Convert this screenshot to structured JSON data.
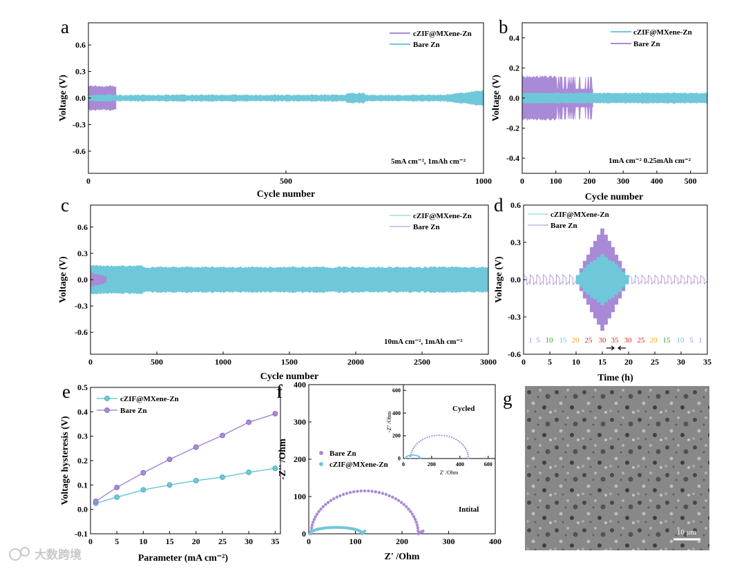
{
  "colors": {
    "purple": "#a98ad6",
    "cyan": "#6fc8d9",
    "red": "#d62728",
    "green": "#2ca02c",
    "orange": "#ff9f1c",
    "axis": "#000000"
  },
  "panel_labels": [
    "a",
    "b",
    "c",
    "d",
    "e",
    "f",
    "g"
  ],
  "watermark": "大数跨境",
  "scalebar_label": "10 μm",
  "sem_image": {
    "panel": "g",
    "description": "SEM micrograph"
  },
  "chart_data": [
    {
      "panel": "a",
      "type": "line",
      "xlabel": "Cycle number",
      "ylabel": "Voltage (V)",
      "xlim": [
        0,
        1000
      ],
      "ylim": [
        -0.85,
        0.85
      ],
      "xticks": [
        "0",
        "500",
        "1000"
      ],
      "yticks": [
        "-0.6",
        "-0.3",
        "0.0",
        "0.3",
        "0.6"
      ],
      "legend": "top-right",
      "annotation": "5mA cm⁻²,  1mAh cm⁻²",
      "series": [
        {
          "name": "cZIF@MXene-Zn",
          "color": "purple",
          "cycles": [
            0,
            70
          ],
          "amplitude": 0.14
        },
        {
          "name": "Bare Zn",
          "color": "cyan",
          "cycles": [
            0,
            1000
          ],
          "amplitude": [
            0.03,
            0.1
          ]
        }
      ]
    },
    {
      "panel": "b",
      "type": "line",
      "xlabel": "Cycle number",
      "ylabel": "Voltage (V)",
      "xlim": [
        0,
        550
      ],
      "ylim": [
        -0.5,
        0.5
      ],
      "xticks": [
        "0",
        "100",
        "200",
        "300",
        "400",
        "500"
      ],
      "yticks": [
        "-0.4",
        "-0.2",
        "0.0",
        "0.2",
        "0.4"
      ],
      "legend": "top-right",
      "annotation": "1mA cm⁻²  0.25mAh cm⁻²",
      "series": [
        {
          "name": "cZIF@MXene-Zn",
          "color": "cyan",
          "cycles": [
            0,
            550
          ],
          "amplitude": 0.03
        },
        {
          "name": "Bare Zn",
          "color": "purple",
          "cycles": [
            0,
            210
          ],
          "amplitude": 0.14
        }
      ]
    },
    {
      "panel": "c",
      "type": "line",
      "xlabel": "Cycle number",
      "ylabel": "Voltage (V)",
      "xlim": [
        0,
        3000
      ],
      "ylim": [
        -0.85,
        0.85
      ],
      "xticks": [
        "0",
        "500",
        "1000",
        "1500",
        "2000",
        "2500",
        "3000"
      ],
      "yticks": [
        "-0.6",
        "-0.3",
        "0.0",
        "0.3",
        "0.6"
      ],
      "legend": "top-right",
      "annotation": "10mA cm⁻²,  1mAh cm⁻²",
      "series": [
        {
          "name": "cZIF@MXene-Zn",
          "color": "cyan",
          "cycles": [
            0,
            3000
          ],
          "amplitude": 0.14
        },
        {
          "name": "Bare Zn",
          "color": "purple",
          "cycles": [
            0,
            120
          ],
          "amplitude": 0.08
        }
      ]
    },
    {
      "panel": "d",
      "type": "line",
      "xlabel": "Time (h)",
      "ylabel": "Voltage (V)",
      "xlim": [
        0,
        35
      ],
      "ylim": [
        -0.6,
        0.6
      ],
      "xticks": [
        "0",
        "5",
        "10",
        "15",
        "20",
        "25",
        "30",
        "35"
      ],
      "yticks": [
        "-0.6",
        "-0.3",
        "0.0",
        "0.3",
        "0.6"
      ],
      "legend": "top-left",
      "series": [
        {
          "name": "cZIF@MXene-Zn",
          "color": "cyan"
        },
        {
          "name": "Bare Zn",
          "color": "purple"
        }
      ],
      "rate_labels": [
        {
          "text": "1",
          "color": "purple"
        },
        {
          "text": "5",
          "color": "purple"
        },
        {
          "text": "10",
          "color": "green"
        },
        {
          "text": "15",
          "color": "cyan"
        },
        {
          "text": "20",
          "color": "orange"
        },
        {
          "text": "25",
          "color": "red"
        },
        {
          "text": "30",
          "color": "red"
        },
        {
          "text": "35",
          "color": "red"
        },
        {
          "text": "30",
          "color": "red"
        },
        {
          "text": "25",
          "color": "red"
        },
        {
          "text": "20",
          "color": "orange"
        },
        {
          "text": "15",
          "color": "green"
        },
        {
          "text": "10",
          "color": "cyan"
        },
        {
          "text": "5",
          "color": "purple"
        },
        {
          "text": "1",
          "color": "purple"
        }
      ],
      "bare_zn_voltage_by_rate": [
        0.03,
        0.09,
        0.15,
        0.2,
        0.26,
        0.31,
        0.36,
        0.41,
        0.36,
        0.31,
        0.26,
        0.2,
        0.15,
        0.09,
        0.03
      ],
      "czif_voltage_by_rate": [
        0.03,
        0.05,
        0.08,
        0.1,
        0.12,
        0.13,
        0.15,
        0.17,
        0.15,
        0.13,
        0.12,
        0.1,
        0.08,
        0.05,
        0.03
      ]
    },
    {
      "panel": "e",
      "type": "line",
      "xlabel": "Parameter (mA cm⁻²)",
      "ylabel": "Voltage hysteresis (V)",
      "xlim": [
        0,
        36
      ],
      "ylim": [
        -0.1,
        0.5
      ],
      "xticks": [
        "0",
        "5",
        "10",
        "15",
        "20",
        "25",
        "30",
        "35"
      ],
      "yticks": [
        "-0.1",
        "0.0",
        "0.1",
        "0.2",
        "0.3",
        "0.4",
        "0.5"
      ],
      "legend": "top-left",
      "x": [
        1,
        5,
        10,
        15,
        20,
        25,
        30,
        35
      ],
      "series": [
        {
          "name": "cZIF@MXene-Zn",
          "color": "cyan",
          "values": [
            0.025,
            0.05,
            0.08,
            0.1,
            0.118,
            0.132,
            0.152,
            0.168
          ]
        },
        {
          "name": "Bare Zn",
          "color": "purple",
          "values": [
            0.033,
            0.09,
            0.15,
            0.205,
            0.255,
            0.303,
            0.357,
            0.392
          ]
        }
      ]
    },
    {
      "panel": "f",
      "type": "scatter",
      "xlabel": "Z' /Ohm",
      "ylabel": "-Z'' /Ohm",
      "xlim": [
        0,
        400
      ],
      "ylim": [
        0,
        400
      ],
      "xticks": [
        "0",
        "100",
        "200",
        "300",
        "400"
      ],
      "yticks": [
        "0",
        "100",
        "200",
        "300",
        "400"
      ],
      "legend": "left",
      "annotation": "Intital",
      "series": [
        {
          "name": "Bare Zn",
          "color": "purple",
          "semicircle": {
            "start": 5,
            "end": 235,
            "tail_to": 245
          }
        },
        {
          "name": "cZIF@MXene-Zn",
          "color": "cyan",
          "semicircle": {
            "start": 3,
            "end": 115,
            "height": 17,
            "tail_to": 120
          }
        }
      ],
      "inset": {
        "xlabel": "Z' /Ohm",
        "ylabel": "-Z'' /Ohm",
        "xlim": [
          0,
          650
        ],
        "ylim": [
          0,
          650
        ],
        "xticks": [
          "0",
          "200",
          "400",
          "600"
        ],
        "yticks": [
          "0",
          "200",
          "400",
          "600"
        ],
        "annotation": "Cycled",
        "series": [
          {
            "name": "Bare Zn",
            "color": "purple",
            "semicircle": {
              "start": 50,
              "end": 460,
              "height": 205
            }
          },
          {
            "name": "cZIF@MXene-Zn",
            "color": "cyan",
            "semicircle": {
              "start": 15,
              "end": 120,
              "height": 30
            }
          }
        ]
      }
    }
  ]
}
